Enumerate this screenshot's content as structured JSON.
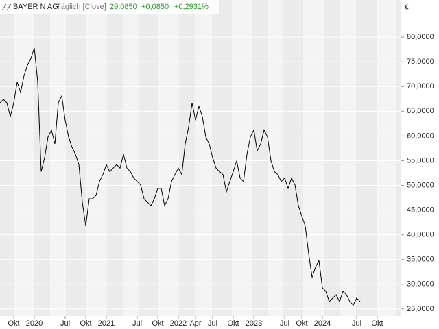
{
  "chart_data": {
    "type": "line",
    "title": "BAYER N AG",
    "subtitle": "Täglich [Close]",
    "last": "29,0850",
    "change": "+0,0850",
    "change_pct": "+0,2931%",
    "unit": "€",
    "categories": [
      null,
      null,
      null,
      null,
      "Okt",
      null,
      null,
      null,
      null,
      null,
      "2020",
      null,
      null,
      null,
      null,
      null,
      null,
      null,
      null,
      "Jul",
      null,
      null,
      null,
      null,
      null,
      "Okt",
      null,
      null,
      null,
      null,
      null,
      "2021",
      null,
      null,
      null,
      null,
      null,
      null,
      null,
      null,
      "Jul",
      null,
      null,
      null,
      null,
      null,
      "Okt",
      null,
      null,
      null,
      null,
      null,
      "2022",
      null,
      null,
      null,
      null,
      "Apr",
      null,
      null,
      null,
      null,
      "Jul",
      null,
      null,
      null,
      null,
      null,
      "Okt",
      null,
      null,
      null,
      null,
      null,
      "2023",
      null,
      null,
      null,
      null,
      null,
      null,
      null,
      null,
      "Jul",
      null,
      null,
      null,
      null,
      "Okt",
      null,
      null,
      null,
      null,
      null,
      "2024",
      null,
      null,
      null,
      null,
      null,
      null,
      null,
      null,
      null,
      "Jul",
      null,
      null,
      null,
      null,
      null,
      "Okt",
      null,
      null,
      null,
      null,
      null,
      null
    ],
    "series": [
      {
        "name": "BAYER N AG",
        "color": "#000000",
        "values": [
          66.7,
          67.4,
          66.7,
          63.9,
          66.7,
          70.9,
          68.8,
          72.2,
          74.3,
          75.7,
          77.8,
          70.9,
          52.8,
          55.6,
          59.8,
          61.2,
          58.4,
          66.7,
          68.1,
          63.2,
          59.8,
          57.7,
          56.3,
          54.2,
          46.6,
          41.8,
          47.3,
          47.3,
          48.0,
          50.8,
          52.2,
          54.2,
          52.8,
          53.5,
          54.2,
          53.5,
          56.3,
          53.5,
          52.8,
          51.5,
          50.8,
          50.1,
          47.3,
          46.6,
          45.9,
          47.3,
          49.4,
          49.4,
          45.9,
          47.3,
          50.8,
          52.2,
          53.5,
          52.2,
          58.4,
          61.8,
          66.7,
          63.2,
          66.0,
          63.9,
          59.8,
          58.4,
          55.6,
          53.5,
          52.8,
          52.2,
          48.7,
          50.8,
          52.8,
          55.0,
          51.5,
          50.8,
          56.3,
          59.8,
          61.2,
          57.0,
          58.4,
          61.2,
          59.8,
          55.0,
          52.8,
          52.2,
          50.8,
          51.5,
          49.4,
          51.5,
          50.1,
          45.9,
          43.8,
          41.8,
          36.2,
          31.4,
          33.5,
          34.8,
          29.3,
          28.6,
          26.5,
          27.2,
          27.9,
          26.5,
          28.6,
          27.9,
          26.5,
          25.8,
          27.2,
          26.5,
          null,
          null,
          null,
          null,
          null,
          null,
          null,
          null,
          null,
          null,
          null
        ]
      }
    ],
    "ylim": [
      23.6,
      87.5
    ],
    "yticks": [
      {
        "value": 25,
        "label": "25,0000"
      },
      {
        "value": 30,
        "label": "30,0000"
      },
      {
        "value": 35,
        "label": "35,0000"
      },
      {
        "value": 40,
        "label": "40,0000"
      },
      {
        "value": 45,
        "label": "45,0000"
      },
      {
        "value": 50,
        "label": "50,0000"
      },
      {
        "value": 55,
        "label": "55,0000"
      },
      {
        "value": 60,
        "label": "60,0000"
      },
      {
        "value": 65,
        "label": "65,0000"
      },
      {
        "value": 70,
        "label": "70,0000"
      },
      {
        "value": 75,
        "label": "75,0000"
      },
      {
        "value": 80,
        "label": "80,0000"
      }
    ],
    "grid": true
  }
}
